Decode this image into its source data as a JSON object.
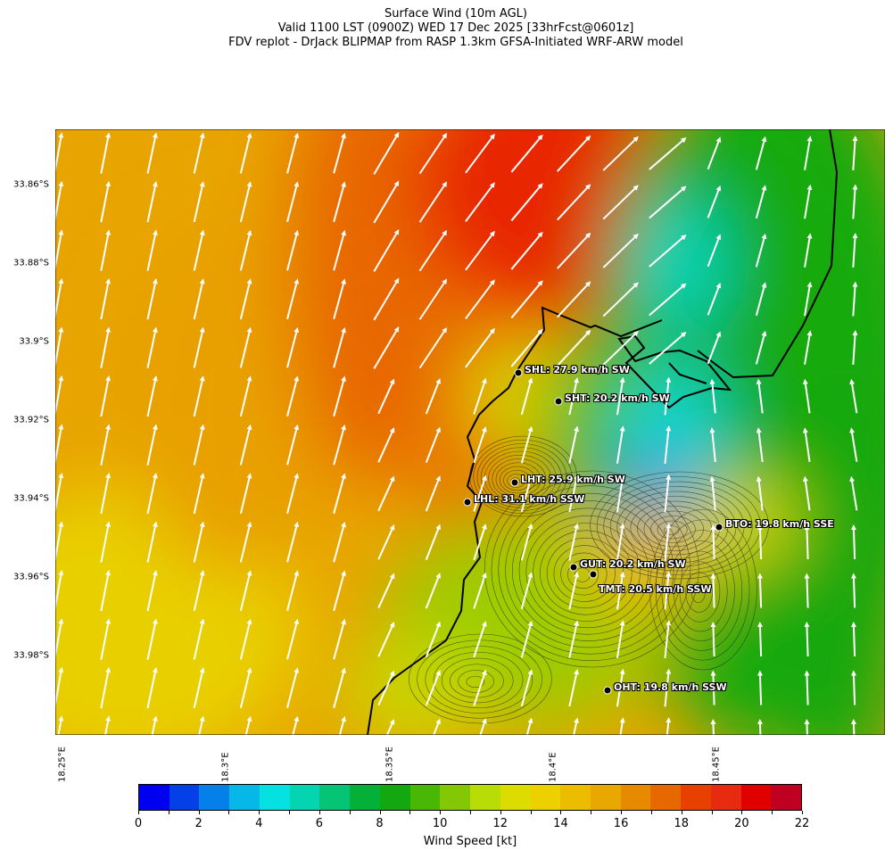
{
  "title": {
    "line1": "Surface Wind (10m AGL)",
    "line2": "Valid 1100 LST (0900Z) WED 17 Dec 2025 [33hrFcst@0601z]",
    "line3": "FDV replot - DrJack BLIPMAP from RASP 1.3km GFSA-Initiated WRF-ARW model"
  },
  "axes": {
    "lat_ticks": [
      "33.86°S",
      "33.88°S",
      "33.9°S",
      "33.92°S",
      "33.94°S",
      "33.96°S",
      "33.98°S"
    ],
    "lon_ticks": [
      "18.25°E",
      "18.3°E",
      "18.35°E",
      "18.4°E",
      "18.45°E"
    ]
  },
  "stations": [
    {
      "id": "SHL",
      "label": "SHL: 27.9 km/h SW"
    },
    {
      "id": "SHT",
      "label": "SHT: 20.2 km/h SW"
    },
    {
      "id": "LHT",
      "label": "LHT: 25.9 km/h SW"
    },
    {
      "id": "LHL",
      "label": "LHL: 31.1 km/h SSW"
    },
    {
      "id": "BTO",
      "label": "BTO: 19.8 km/h SSE"
    },
    {
      "id": "GUT",
      "label": "GUT: 20.2 km/h SW"
    },
    {
      "id": "TMT",
      "label": "TMT: 20.5 km/h SSW"
    },
    {
      "id": "OHT",
      "label": "OHT: 19.8 km/h SSW"
    }
  ],
  "colorbar": {
    "label": "Wind Speed [kt]",
    "ticks": [
      "0",
      "2",
      "4",
      "6",
      "8",
      "10",
      "12",
      "14",
      "16",
      "18",
      "20",
      "22"
    ],
    "range": [
      0,
      22
    ],
    "colors": [
      "#0000f0",
      "#0340e8",
      "#0580e8",
      "#05b8e8",
      "#05e0e0",
      "#05d4b0",
      "#05c474",
      "#05b038",
      "#13a80f",
      "#48b805",
      "#84c805",
      "#b8dc05",
      "#dcdc00",
      "#ecd000",
      "#ecbc00",
      "#e8a800",
      "#e88a00",
      "#e86800",
      "#e84000",
      "#e82a10",
      "#e00000",
      "#c00020"
    ]
  },
  "map": {
    "arrow_color": "#ffffff",
    "coastline_color": "#000000"
  }
}
